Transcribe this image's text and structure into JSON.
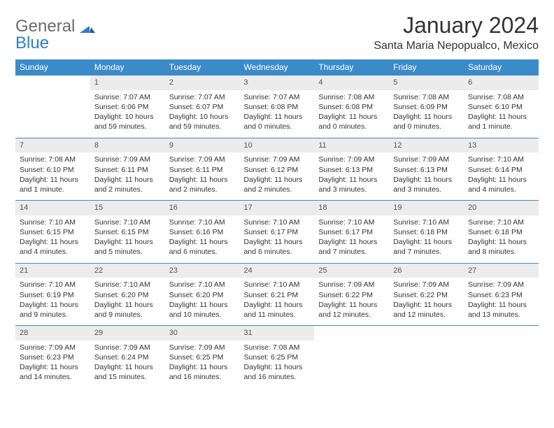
{
  "logo": {
    "general": "General",
    "blue": "Blue"
  },
  "title": "January 2024",
  "location": "Santa Maria Nepopualco, Mexico",
  "weekdays": [
    "Sunday",
    "Monday",
    "Tuesday",
    "Wednesday",
    "Thursday",
    "Friday",
    "Saturday"
  ],
  "colors": {
    "header_bg": "#3b8bc9",
    "header_text": "#ffffff",
    "daynum_bg": "#ececec",
    "rule": "#3b8bc9",
    "logo_gray": "#6b6b6b",
    "logo_blue": "#2f7fbf"
  },
  "weeks": [
    [
      {
        "n": "",
        "sunrise": "",
        "sunset": "",
        "daylight": ""
      },
      {
        "n": "1",
        "sunrise": "Sunrise: 7:07 AM",
        "sunset": "Sunset: 6:06 PM",
        "daylight": "Daylight: 10 hours and 59 minutes."
      },
      {
        "n": "2",
        "sunrise": "Sunrise: 7:07 AM",
        "sunset": "Sunset: 6:07 PM",
        "daylight": "Daylight: 10 hours and 59 minutes."
      },
      {
        "n": "3",
        "sunrise": "Sunrise: 7:07 AM",
        "sunset": "Sunset: 6:08 PM",
        "daylight": "Daylight: 11 hours and 0 minutes."
      },
      {
        "n": "4",
        "sunrise": "Sunrise: 7:08 AM",
        "sunset": "Sunset: 6:08 PM",
        "daylight": "Daylight: 11 hours and 0 minutes."
      },
      {
        "n": "5",
        "sunrise": "Sunrise: 7:08 AM",
        "sunset": "Sunset: 6:09 PM",
        "daylight": "Daylight: 11 hours and 0 minutes."
      },
      {
        "n": "6",
        "sunrise": "Sunrise: 7:08 AM",
        "sunset": "Sunset: 6:10 PM",
        "daylight": "Daylight: 11 hours and 1 minute."
      }
    ],
    [
      {
        "n": "7",
        "sunrise": "Sunrise: 7:08 AM",
        "sunset": "Sunset: 6:10 PM",
        "daylight": "Daylight: 11 hours and 1 minute."
      },
      {
        "n": "8",
        "sunrise": "Sunrise: 7:09 AM",
        "sunset": "Sunset: 6:11 PM",
        "daylight": "Daylight: 11 hours and 2 minutes."
      },
      {
        "n": "9",
        "sunrise": "Sunrise: 7:09 AM",
        "sunset": "Sunset: 6:11 PM",
        "daylight": "Daylight: 11 hours and 2 minutes."
      },
      {
        "n": "10",
        "sunrise": "Sunrise: 7:09 AM",
        "sunset": "Sunset: 6:12 PM",
        "daylight": "Daylight: 11 hours and 2 minutes."
      },
      {
        "n": "11",
        "sunrise": "Sunrise: 7:09 AM",
        "sunset": "Sunset: 6:13 PM",
        "daylight": "Daylight: 11 hours and 3 minutes."
      },
      {
        "n": "12",
        "sunrise": "Sunrise: 7:09 AM",
        "sunset": "Sunset: 6:13 PM",
        "daylight": "Daylight: 11 hours and 3 minutes."
      },
      {
        "n": "13",
        "sunrise": "Sunrise: 7:10 AM",
        "sunset": "Sunset: 6:14 PM",
        "daylight": "Daylight: 11 hours and 4 minutes."
      }
    ],
    [
      {
        "n": "14",
        "sunrise": "Sunrise: 7:10 AM",
        "sunset": "Sunset: 6:15 PM",
        "daylight": "Daylight: 11 hours and 4 minutes."
      },
      {
        "n": "15",
        "sunrise": "Sunrise: 7:10 AM",
        "sunset": "Sunset: 6:15 PM",
        "daylight": "Daylight: 11 hours and 5 minutes."
      },
      {
        "n": "16",
        "sunrise": "Sunrise: 7:10 AM",
        "sunset": "Sunset: 6:16 PM",
        "daylight": "Daylight: 11 hours and 6 minutes."
      },
      {
        "n": "17",
        "sunrise": "Sunrise: 7:10 AM",
        "sunset": "Sunset: 6:17 PM",
        "daylight": "Daylight: 11 hours and 6 minutes."
      },
      {
        "n": "18",
        "sunrise": "Sunrise: 7:10 AM",
        "sunset": "Sunset: 6:17 PM",
        "daylight": "Daylight: 11 hours and 7 minutes."
      },
      {
        "n": "19",
        "sunrise": "Sunrise: 7:10 AM",
        "sunset": "Sunset: 6:18 PM",
        "daylight": "Daylight: 11 hours and 7 minutes."
      },
      {
        "n": "20",
        "sunrise": "Sunrise: 7:10 AM",
        "sunset": "Sunset: 6:18 PM",
        "daylight": "Daylight: 11 hours and 8 minutes."
      }
    ],
    [
      {
        "n": "21",
        "sunrise": "Sunrise: 7:10 AM",
        "sunset": "Sunset: 6:19 PM",
        "daylight": "Daylight: 11 hours and 9 minutes."
      },
      {
        "n": "22",
        "sunrise": "Sunrise: 7:10 AM",
        "sunset": "Sunset: 6:20 PM",
        "daylight": "Daylight: 11 hours and 9 minutes."
      },
      {
        "n": "23",
        "sunrise": "Sunrise: 7:10 AM",
        "sunset": "Sunset: 6:20 PM",
        "daylight": "Daylight: 11 hours and 10 minutes."
      },
      {
        "n": "24",
        "sunrise": "Sunrise: 7:10 AM",
        "sunset": "Sunset: 6:21 PM",
        "daylight": "Daylight: 11 hours and 11 minutes."
      },
      {
        "n": "25",
        "sunrise": "Sunrise: 7:09 AM",
        "sunset": "Sunset: 6:22 PM",
        "daylight": "Daylight: 11 hours and 12 minutes."
      },
      {
        "n": "26",
        "sunrise": "Sunrise: 7:09 AM",
        "sunset": "Sunset: 6:22 PM",
        "daylight": "Daylight: 11 hours and 12 minutes."
      },
      {
        "n": "27",
        "sunrise": "Sunrise: 7:09 AM",
        "sunset": "Sunset: 6:23 PM",
        "daylight": "Daylight: 11 hours and 13 minutes."
      }
    ],
    [
      {
        "n": "28",
        "sunrise": "Sunrise: 7:09 AM",
        "sunset": "Sunset: 6:23 PM",
        "daylight": "Daylight: 11 hours and 14 minutes."
      },
      {
        "n": "29",
        "sunrise": "Sunrise: 7:09 AM",
        "sunset": "Sunset: 6:24 PM",
        "daylight": "Daylight: 11 hours and 15 minutes."
      },
      {
        "n": "30",
        "sunrise": "Sunrise: 7:09 AM",
        "sunset": "Sunset: 6:25 PM",
        "daylight": "Daylight: 11 hours and 16 minutes."
      },
      {
        "n": "31",
        "sunrise": "Sunrise: 7:08 AM",
        "sunset": "Sunset: 6:25 PM",
        "daylight": "Daylight: 11 hours and 16 minutes."
      },
      {
        "n": "",
        "sunrise": "",
        "sunset": "",
        "daylight": ""
      },
      {
        "n": "",
        "sunrise": "",
        "sunset": "",
        "daylight": ""
      },
      {
        "n": "",
        "sunrise": "",
        "sunset": "",
        "daylight": ""
      }
    ]
  ]
}
